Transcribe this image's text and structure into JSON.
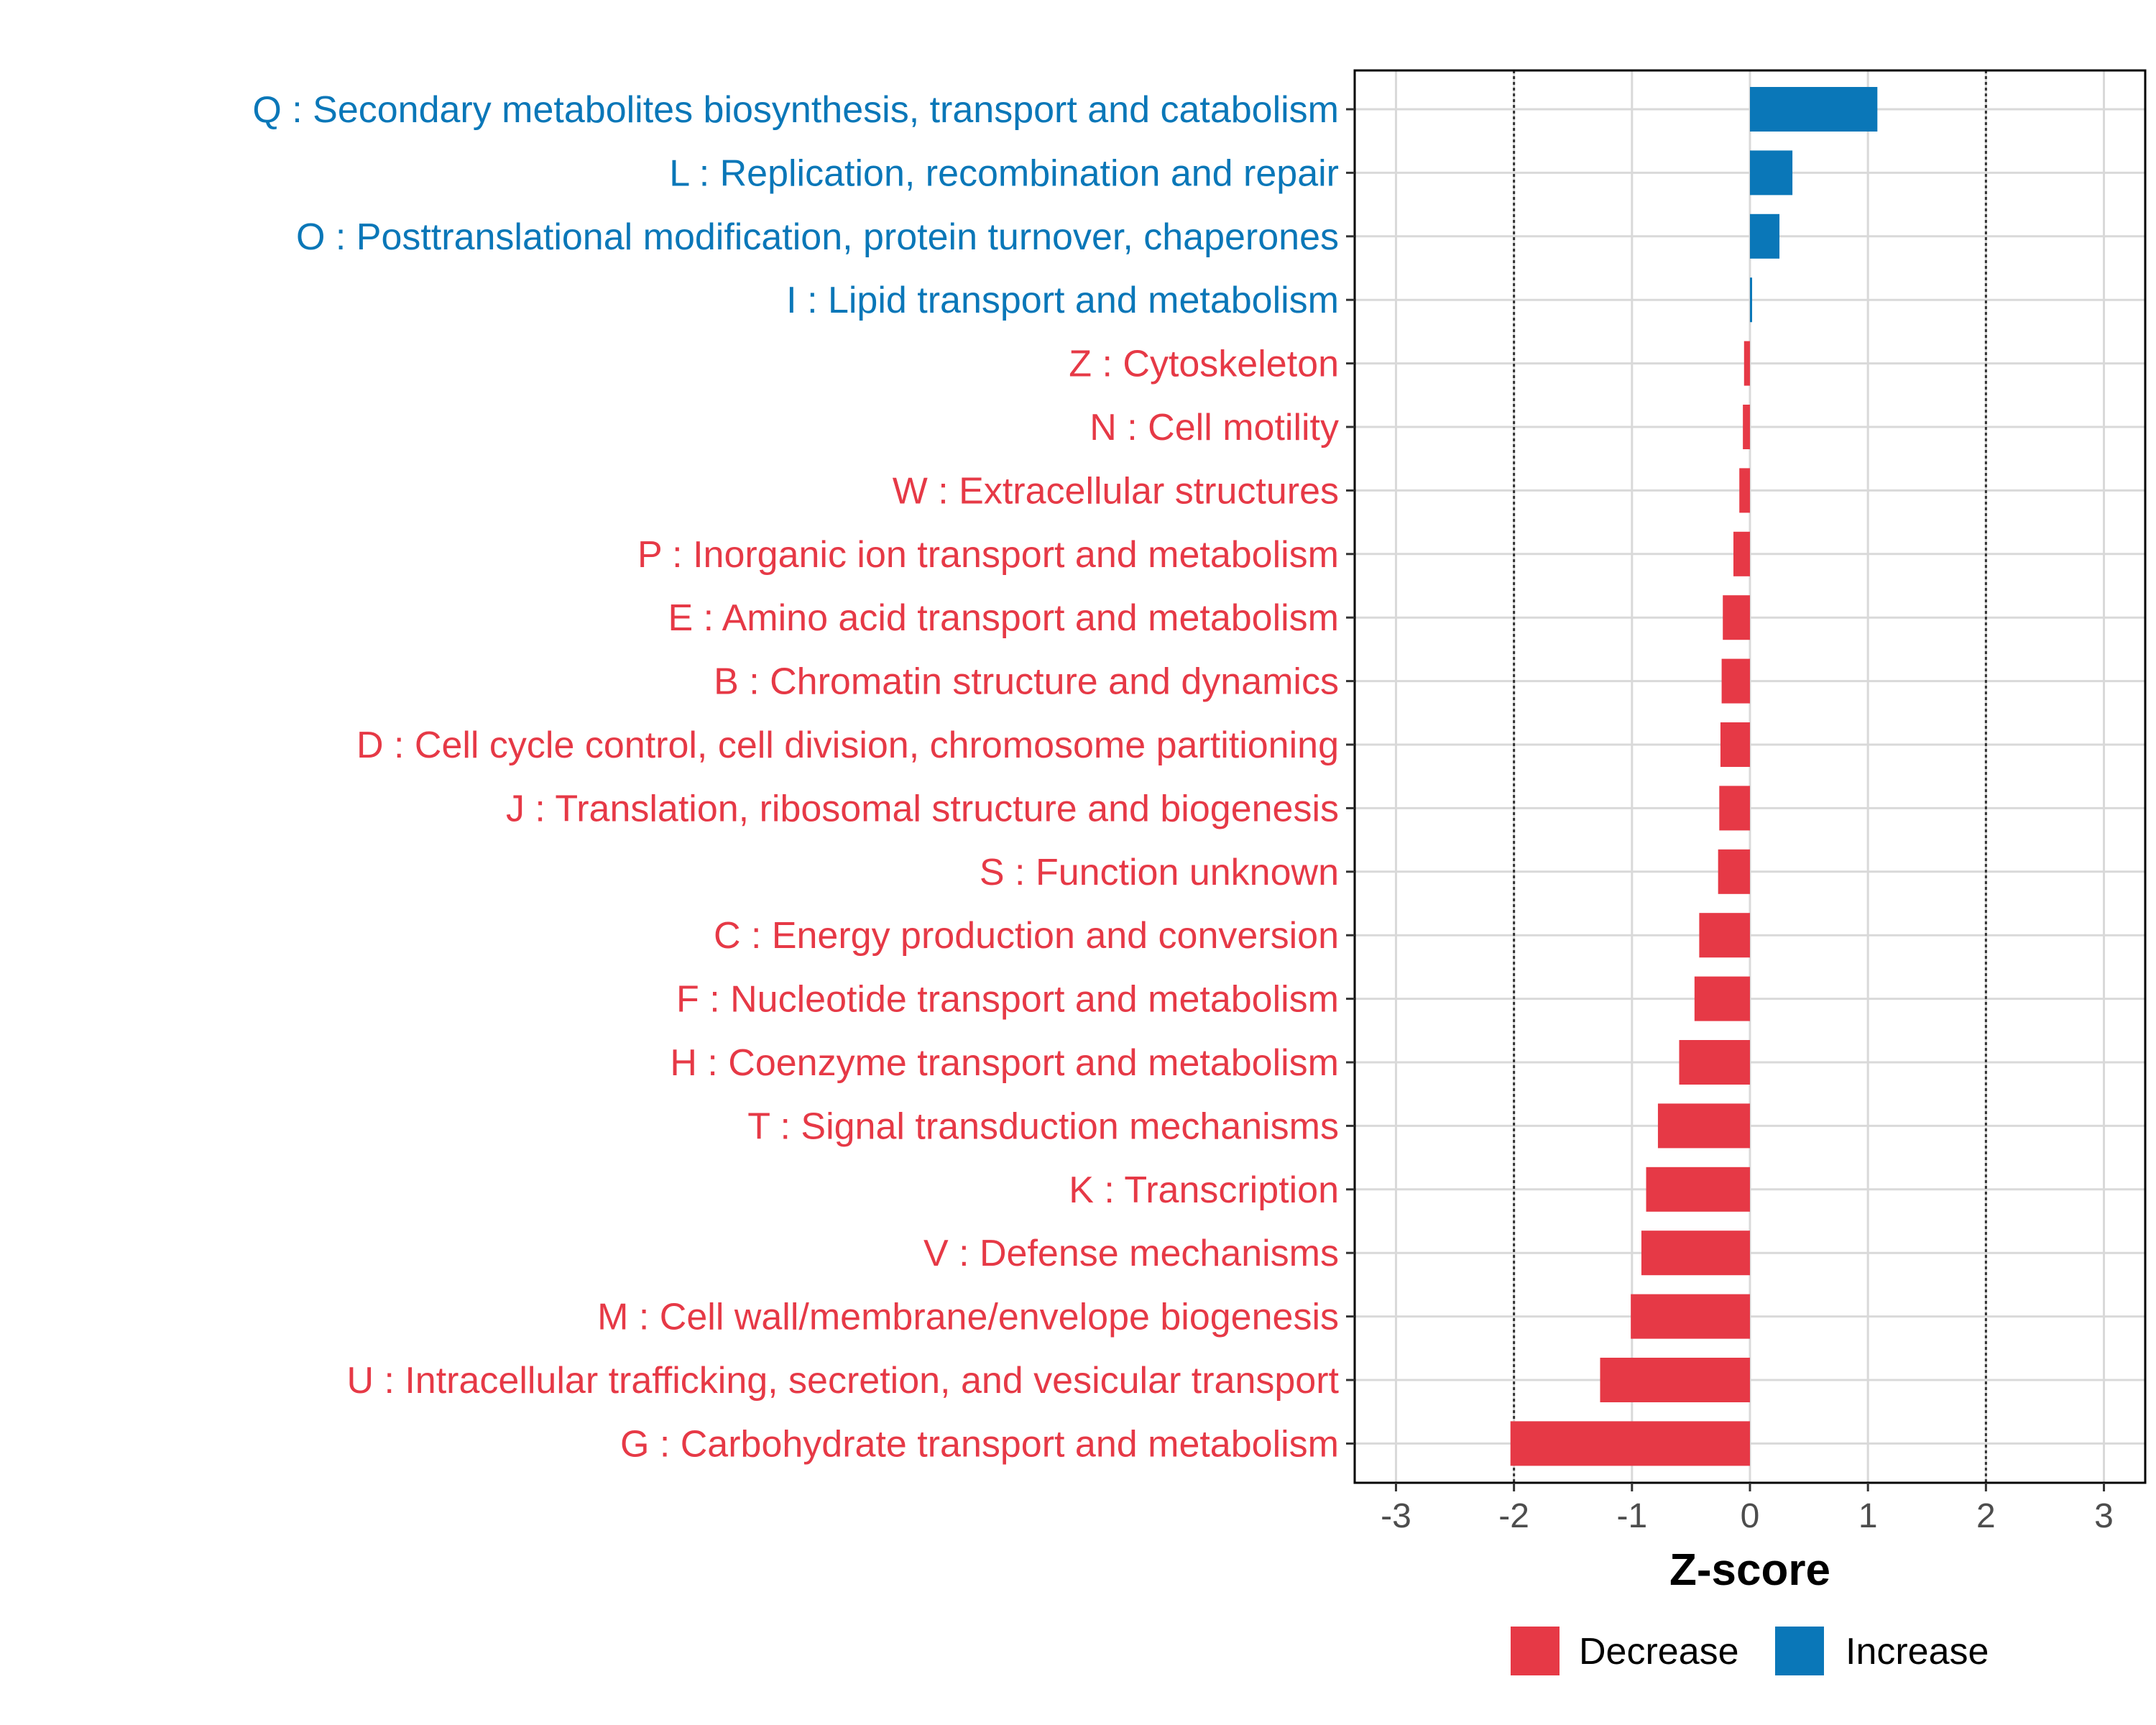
{
  "chart_data": {
    "type": "bar",
    "orientation": "horizontal",
    "xlabel": "Z-score",
    "ylabel": "",
    "xlim": [
      -3.35,
      3.35
    ],
    "xticks": [
      -3,
      -2,
      -1,
      0,
      1,
      2,
      3
    ],
    "tick_labels": [
      "-3",
      "-2",
      "-1",
      "0",
      "1",
      "2",
      "3"
    ],
    "reference_lines": [
      -2,
      2
    ],
    "grid": true,
    "legend_position": "bottom-right",
    "colors": {
      "Decrease": "#e63946",
      "Increase": "#0a77b8"
    },
    "legend": [
      {
        "label": "Decrease",
        "color": "#e63946"
      },
      {
        "label": "Increase",
        "color": "#0a77b8"
      }
    ],
    "categories": [
      {
        "label": "Q : Secondary metabolites biosynthesis, transport and catabolism",
        "value": 1.08,
        "group": "Increase"
      },
      {
        "label": "L : Replication, recombination and repair",
        "value": 0.36,
        "group": "Increase"
      },
      {
        "label": "O : Posttranslational modification, protein turnover, chaperones",
        "value": 0.25,
        "group": "Increase"
      },
      {
        "label": "I : Lipid transport and metabolism",
        "value": 0.01,
        "group": "Increase"
      },
      {
        "label": "Z : Cytoskeleton",
        "value": -0.05,
        "group": "Decrease"
      },
      {
        "label": "N : Cell motility",
        "value": -0.06,
        "group": "Decrease"
      },
      {
        "label": "W : Extracellular structures",
        "value": -0.09,
        "group": "Decrease"
      },
      {
        "label": "P : Inorganic ion transport and metabolism",
        "value": -0.14,
        "group": "Decrease"
      },
      {
        "label": "E : Amino acid transport and metabolism",
        "value": -0.23,
        "group": "Decrease"
      },
      {
        "label": "B : Chromatin structure and dynamics",
        "value": -0.24,
        "group": "Decrease"
      },
      {
        "label": "D : Cell cycle control, cell division, chromosome partitioning",
        "value": -0.25,
        "group": "Decrease"
      },
      {
        "label": "J : Translation, ribosomal structure and biogenesis",
        "value": -0.26,
        "group": "Decrease"
      },
      {
        "label": "S : Function unknown",
        "value": -0.27,
        "group": "Decrease"
      },
      {
        "label": "C : Energy production and conversion",
        "value": -0.43,
        "group": "Decrease"
      },
      {
        "label": "F : Nucleotide transport and metabolism",
        "value": -0.47,
        "group": "Decrease"
      },
      {
        "label": "H : Coenzyme transport and metabolism",
        "value": -0.6,
        "group": "Decrease"
      },
      {
        "label": "T : Signal transduction mechanisms",
        "value": -0.78,
        "group": "Decrease"
      },
      {
        "label": "K : Transcription",
        "value": -0.88,
        "group": "Decrease"
      },
      {
        "label": "V : Defense mechanisms",
        "value": -0.92,
        "group": "Decrease"
      },
      {
        "label": "M : Cell wall/membrane/envelope biogenesis",
        "value": -1.01,
        "group": "Decrease"
      },
      {
        "label": "U : Intracellular trafficking, secretion, and vesicular transport",
        "value": -1.27,
        "group": "Decrease"
      },
      {
        "label": "G : Carbohydrate transport and metabolism",
        "value": -2.03,
        "group": "Decrease"
      }
    ]
  }
}
